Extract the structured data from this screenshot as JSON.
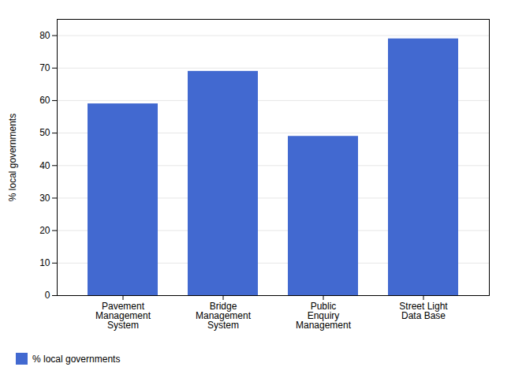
{
  "chart_data": {
    "type": "bar",
    "categories": [
      "Pavement\nManagement\nSystem",
      "Bridge\nManagement\nSystem",
      "Public\nEnquiry\nManagement",
      "Street Light\nData Base"
    ],
    "series": [
      {
        "name": "% local governments",
        "values": [
          59,
          69,
          49,
          79
        ]
      }
    ],
    "ylabel": "% local governments",
    "ylim": [
      0,
      85
    ],
    "yticks": [
      0,
      10,
      20,
      30,
      40,
      50,
      60,
      70,
      80
    ],
    "grid": true,
    "legend": "lower left"
  }
}
